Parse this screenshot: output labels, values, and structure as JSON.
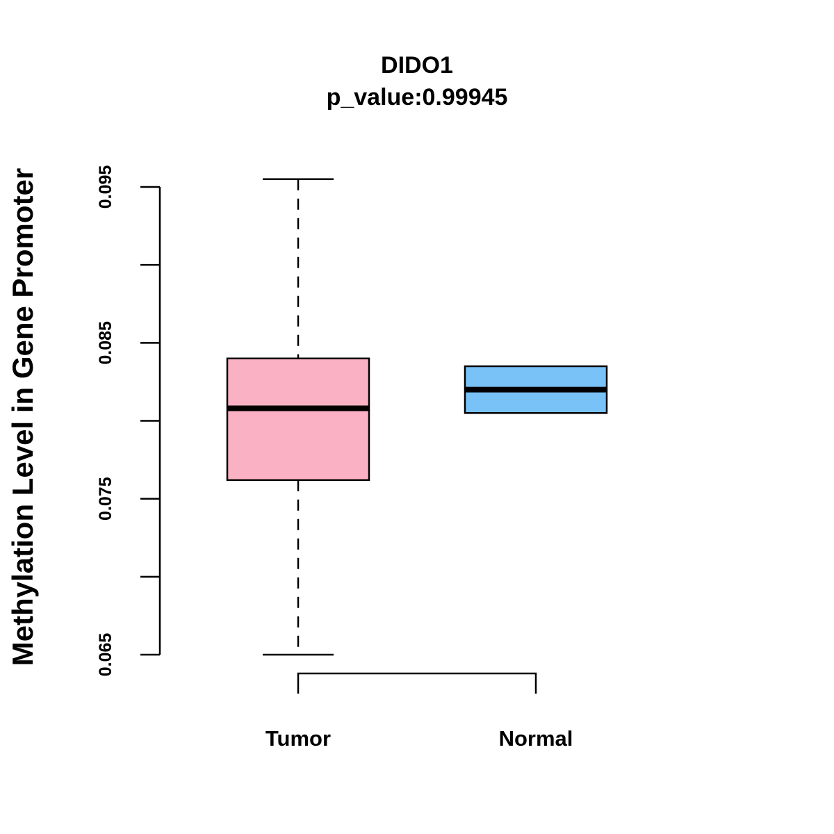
{
  "chart_data": {
    "type": "boxplot",
    "title": "DIDO1",
    "subtitle": "p_value:0.99945",
    "ylabel": "Methylation Level in Gene Promoter",
    "xlabel": "",
    "ylim": [
      0.065,
      0.0955
    ],
    "yticks": [
      0.065,
      0.07,
      0.075,
      0.08,
      0.085,
      0.09,
      0.095
    ],
    "ytick_labels": [
      "0.065",
      "",
      "0.075",
      "",
      "0.085",
      "",
      "0.095"
    ],
    "categories": [
      "Tumor",
      "Normal"
    ],
    "series": [
      {
        "name": "Tumor",
        "whisker_low": 0.065,
        "q1": 0.0762,
        "median": 0.0808,
        "q3": 0.084,
        "whisker_high": 0.0955,
        "color": "#FBB1C4"
      },
      {
        "name": "Normal",
        "whisker_low": 0.0805,
        "q1": 0.0805,
        "median": 0.082,
        "q3": 0.0835,
        "whisker_high": 0.0835,
        "color": "#79C2F8"
      }
    ],
    "significance_bracket": [
      "Tumor",
      "Normal"
    ]
  }
}
